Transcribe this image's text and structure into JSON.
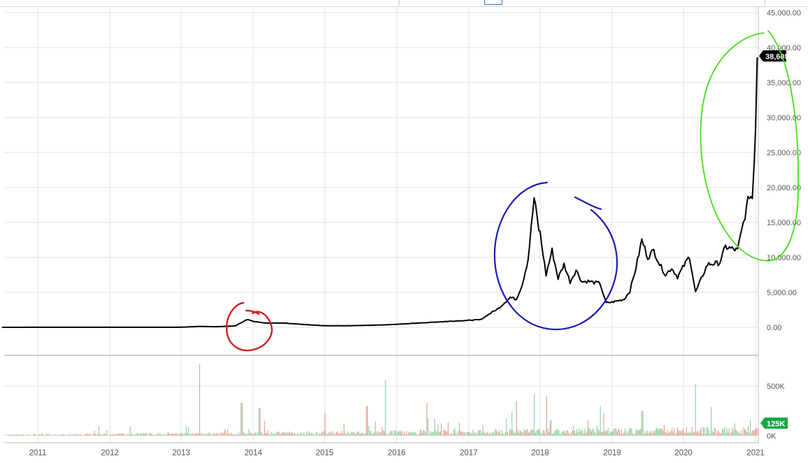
{
  "chart_data": [
    {
      "type": "line",
      "title": "",
      "xlabel": "",
      "ylabel": "",
      "x_ticks": [
        "2011",
        "2012",
        "2013",
        "2014",
        "2015",
        "2016",
        "2017",
        "2018",
        "2019",
        "2020",
        "2021"
      ],
      "y_ticks": [
        "0.00",
        "5,000.00",
        "10,000.00",
        "15,000.00",
        "20,000.00",
        "25,000.00",
        "30,000.00",
        "35,000.00",
        "40,000.00",
        "45,000.00"
      ],
      "ylim": [
        0,
        45000
      ],
      "grid": true,
      "last_price_label": "38,608.58",
      "series": [
        {
          "color": "#000000",
          "points": [
            [
              "2010-07",
              0.1
            ],
            [
              "2011-06",
              15
            ],
            [
              "2012-01",
              6
            ],
            [
              "2012-08",
              11
            ],
            [
              "2013-01",
              15
            ],
            [
              "2013-04",
              130
            ],
            [
              "2013-07",
              90
            ],
            [
              "2013-10",
              200
            ],
            [
              "2013-12",
              1100
            ],
            [
              "2014-01",
              850
            ],
            [
              "2014-03",
              600
            ],
            [
              "2014-06",
              620
            ],
            [
              "2014-10",
              380
            ],
            [
              "2015-01",
              230
            ],
            [
              "2015-06",
              240
            ],
            [
              "2015-11",
              350
            ],
            [
              "2016-01",
              430
            ],
            [
              "2016-06",
              680
            ],
            [
              "2016-12",
              960
            ],
            [
              "2017-01",
              1000
            ],
            [
              "2017-03",
              1100
            ],
            [
              "2017-05",
              2200
            ],
            [
              "2017-06",
              2700
            ],
            [
              "2017-08",
              4300
            ],
            [
              "2017-09",
              4000
            ],
            [
              "2017-10",
              6100
            ],
            [
              "2017-11",
              9800
            ],
            [
              "2017-12",
              18500
            ],
            [
              "2017-12-25",
              14000
            ],
            [
              "2018-01",
              13500
            ],
            [
              "2018-02",
              7500
            ],
            [
              "2018-03",
              11000
            ],
            [
              "2018-04",
              7000
            ],
            [
              "2018-05",
              9000
            ],
            [
              "2018-06",
              6500
            ],
            [
              "2018-07",
              8200
            ],
            [
              "2018-08",
              6500
            ],
            [
              "2018-09",
              6600
            ],
            [
              "2018-10",
              6400
            ],
            [
              "2018-11",
              6300
            ],
            [
              "2018-11-25",
              4000
            ],
            [
              "2018-12",
              3500
            ],
            [
              "2019-01",
              3600
            ],
            [
              "2019-03",
              4000
            ],
            [
              "2019-04",
              5200
            ],
            [
              "2019-05",
              8500
            ],
            [
              "2019-06",
              12500
            ],
            [
              "2019-07",
              10000
            ],
            [
              "2019-08",
              11000
            ],
            [
              "2019-09",
              9000
            ],
            [
              "2019-10",
              7500
            ],
            [
              "2019-11",
              8500
            ],
            [
              "2019-12",
              7200
            ],
            [
              "2020-02",
              10200
            ],
            [
              "2020-03",
              5000
            ],
            [
              "2020-04",
              7000
            ],
            [
              "2020-05",
              9000
            ],
            [
              "2020-07",
              9200
            ],
            [
              "2020-08",
              11500
            ],
            [
              "2020-10",
              11000
            ],
            [
              "2020-11",
              15000
            ],
            [
              "2020-12",
              19000
            ],
            [
              "2020-12-15",
              18500
            ],
            [
              "2020-12-25",
              24000
            ],
            [
              "2021-01",
              29000
            ],
            [
              "2021-01-10",
              38608.58
            ]
          ]
        }
      ]
    },
    {
      "type": "bar",
      "title": "",
      "y_ticks": [
        "0K",
        "500K"
      ],
      "ylim": [
        0,
        600000
      ],
      "last_volume_label": "125K",
      "up_color": "#66c48a",
      "down_color": "#e0826f",
      "spikes": [
        [
          "2013-04",
          720000
        ],
        [
          "2013-11",
          330000
        ],
        [
          "2014-02",
          280000
        ],
        [
          "2015-01",
          230000
        ],
        [
          "2015-08",
          300000
        ],
        [
          "2015-11",
          560000
        ],
        [
          "2016-06",
          330000
        ],
        [
          "2017-09",
          350000
        ],
        [
          "2017-12",
          420000
        ],
        [
          "2018-02",
          400000
        ],
        [
          "2018-11",
          300000
        ],
        [
          "2019-06",
          250000
        ],
        [
          "2020-03",
          520000
        ]
      ]
    }
  ],
  "annotations": {
    "red": "#cc1f1f",
    "blue": "#1a1ab0",
    "green": "#44dd1a"
  }
}
